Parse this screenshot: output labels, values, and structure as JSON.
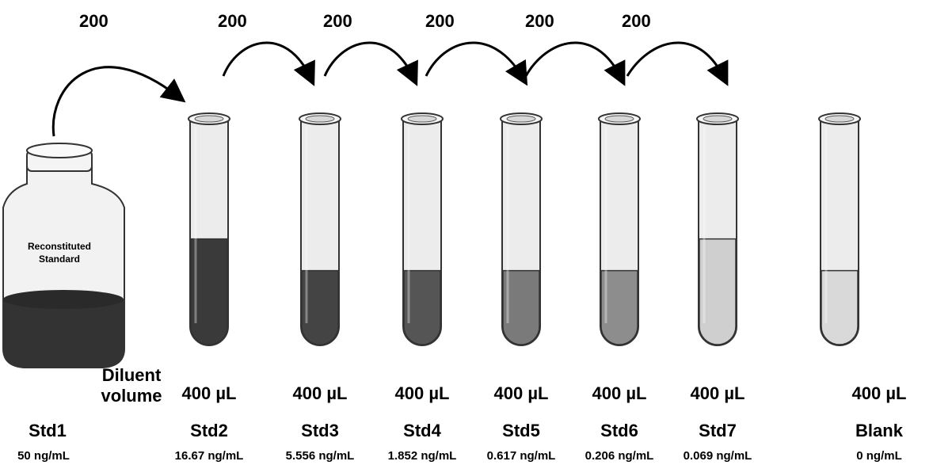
{
  "transfer_volumes": [
    "200",
    "200",
    "200",
    "200",
    "200",
    "200"
  ],
  "bottle": {
    "label_line1": "Reconstituted",
    "label_line2": "Standard",
    "liquid_color": "#333333"
  },
  "diluent": {
    "title_line1": "Diluent",
    "title_line2": "volume"
  },
  "tubes": [
    {
      "volume": "400 µL",
      "name": "Std2",
      "conc": "16.67 ng/mL",
      "liquid_color": "#3a3a3a",
      "fill_level": 0.47
    },
    {
      "volume": "400 µL",
      "name": "Std3",
      "conc": "5.556 ng/mL",
      "liquid_color": "#444444",
      "fill_level": 0.33
    },
    {
      "volume": "400 µL",
      "name": "Std4",
      "conc": "1.852 ng/mL",
      "liquid_color": "#555555",
      "fill_level": 0.33
    },
    {
      "volume": "400 µL",
      "name": "Std5",
      "conc": "0.617 ng/mL",
      "liquid_color": "#7a7a7a",
      "fill_level": 0.33
    },
    {
      "volume": "400 µL",
      "name": "Std6",
      "conc": "0.206 ng/mL",
      "liquid_color": "#8d8d8d",
      "fill_level": 0.33
    },
    {
      "volume": "400 µL",
      "name": "Std7",
      "conc": "0.069 ng/mL",
      "liquid_color": "#cfcfcf",
      "fill_level": 0.47
    },
    {
      "volume": "400 µL",
      "name": "Blank",
      "conc": "0 ng/mL",
      "liquid_color": "#d9d9d9",
      "fill_level": 0.33
    }
  ],
  "std1": {
    "name": "Std1",
    "conc": "50 ng/mL"
  }
}
